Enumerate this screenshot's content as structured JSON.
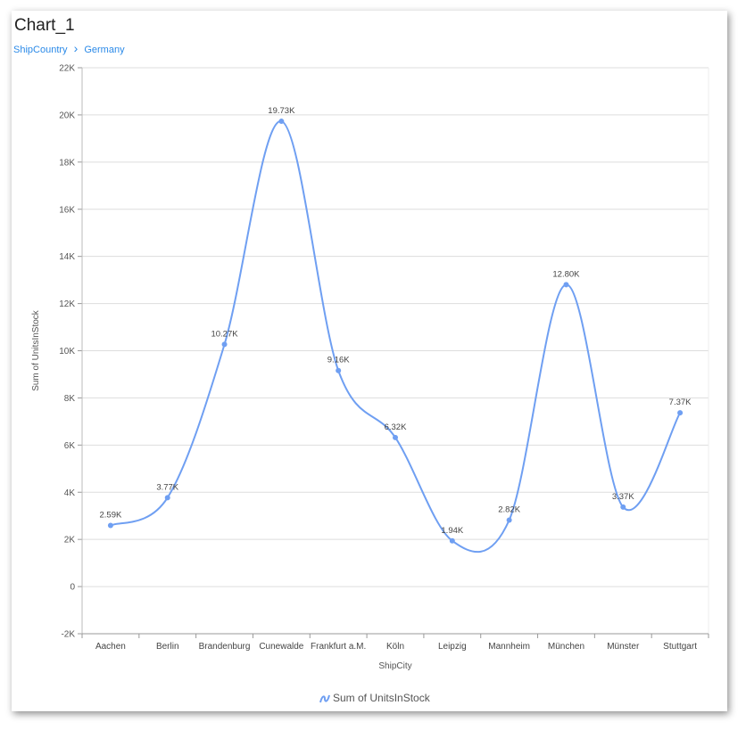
{
  "title": "Chart_1",
  "breadcrumb": {
    "root": "ShipCountry",
    "separator": "›",
    "current": "Germany"
  },
  "chart_data": {
    "type": "line",
    "smooth": true,
    "xlabel": "ShipCity",
    "ylabel": "Sum of UnitsInStock",
    "categories": [
      "Aachen",
      "Berlin",
      "Brandenburg",
      "Cunewalde",
      "Frankfurt a.M.",
      "Köln",
      "Leipzig",
      "Mannheim",
      "München",
      "Münster",
      "Stuttgart"
    ],
    "series": [
      {
        "name": "Sum of UnitsInStock",
        "color": "#6f9ff2",
        "values": [
          2590,
          3770,
          10270,
          19730,
          9160,
          6320,
          1940,
          2820,
          12800,
          3370,
          7370
        ],
        "labels": [
          "2.59K",
          "3.77K",
          "10.27K",
          "19.73K",
          "9.16K",
          "6.32K",
          "1.94K",
          "2.82K",
          "12.80K",
          "3.37K",
          "7.37K"
        ]
      }
    ],
    "ylim": [
      -2000,
      22000
    ],
    "yticks": [
      -2000,
      0,
      2000,
      4000,
      6000,
      8000,
      10000,
      12000,
      14000,
      16000,
      18000,
      20000,
      22000
    ],
    "ytick_labels": [
      "-2K",
      "0",
      "2K",
      "4K",
      "6K",
      "8K",
      "10K",
      "12K",
      "14K",
      "16K",
      "18K",
      "20K",
      "22K"
    ],
    "grid": true,
    "legend": "bottom"
  }
}
